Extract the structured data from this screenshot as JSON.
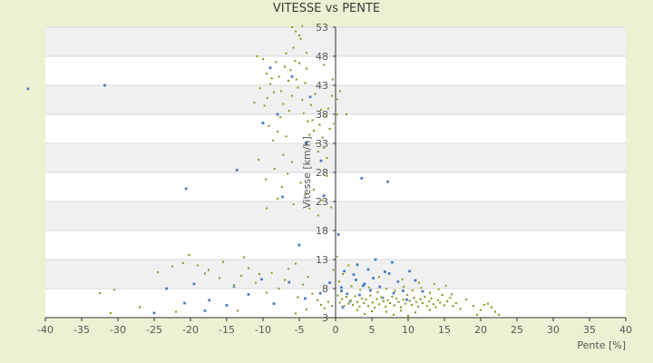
{
  "chart_data": {
    "type": "scatter",
    "title": "VITESSE vs PENTE",
    "xlabel": "Pente [%]",
    "ylabel": "Vitesse [km/h]",
    "xlim": [
      -40,
      40
    ],
    "ylim": [
      3,
      53
    ],
    "xticks": [
      -40,
      -35,
      -30,
      -25,
      -20,
      -15,
      -10,
      -5,
      0,
      5,
      10,
      15,
      20,
      25,
      30,
      35,
      40
    ],
    "yticks": [
      3,
      8,
      13,
      18,
      23,
      28,
      33,
      38,
      43,
      48,
      53
    ],
    "grid": "horizontal alternating bands",
    "legend": "none",
    "colors": {
      "background": "#ebf1d2",
      "band_white": "#ffffff",
      "band_grey": "#f0f0f0",
      "series_a": "#3d7bbf",
      "series_b": "#8a9a22",
      "axis": "#333333"
    },
    "series": [
      {
        "color": "#3d7bbf",
        "points": [
          [
            -42.4,
            42.4
          ],
          [
            -31.8,
            43.0
          ],
          [
            -13.6,
            28.4
          ],
          [
            -20.6,
            25.2
          ],
          [
            -7.3,
            23.8
          ],
          [
            -1.6,
            24.0
          ],
          [
            3.6,
            27.0
          ],
          [
            7.2,
            26.4
          ],
          [
            0.4,
            17.3
          ],
          [
            -5.0,
            15.5
          ],
          [
            -23.3,
            8.0
          ],
          [
            -19.5,
            8.8
          ],
          [
            -14.0,
            8.4
          ],
          [
            -10.2,
            9.6
          ],
          [
            -6.4,
            9.1
          ],
          [
            -20.8,
            5.5
          ],
          [
            -17.4,
            6.0
          ],
          [
            -12.0,
            7.0
          ],
          [
            -8.5,
            5.4
          ],
          [
            -4.2,
            6.3
          ],
          [
            -2.1,
            7.2
          ],
          [
            -0.8,
            9.0
          ],
          [
            -25.0,
            3.8
          ],
          [
            -18.0,
            4.2
          ],
          [
            -15.0,
            5.1
          ],
          [
            1.2,
            11.0
          ],
          [
            3.0,
            12.1
          ],
          [
            5.5,
            13.0
          ],
          [
            7.8,
            12.5
          ],
          [
            10.2,
            11.0
          ],
          [
            0.8,
            8.2
          ],
          [
            1.6,
            7.1
          ],
          [
            2.8,
            9.5
          ],
          [
            4.0,
            8.8
          ],
          [
            5.2,
            9.8
          ],
          [
            6.1,
            8.3
          ],
          [
            7.4,
            10.6
          ],
          [
            8.6,
            9.2
          ],
          [
            9.3,
            7.6
          ],
          [
            11.0,
            9.4
          ],
          [
            2.0,
            5.8
          ],
          [
            3.3,
            6.9
          ],
          [
            4.8,
            7.7
          ],
          [
            6.5,
            6.4
          ],
          [
            8.0,
            7.2
          ],
          [
            9.8,
            6.1
          ],
          [
            12.0,
            7.5
          ],
          [
            1.0,
            4.8
          ],
          [
            2.5,
            10.4
          ],
          [
            4.5,
            11.3
          ],
          [
            6.8,
            10.9
          ],
          [
            -8.0,
            38.0
          ],
          [
            -4.0,
            33.0
          ],
          [
            -10.0,
            36.5
          ],
          [
            -2.0,
            30.0
          ],
          [
            -9.0,
            46.0
          ],
          [
            -6.0,
            44.5
          ],
          [
            -3.5,
            41.0
          ],
          [
            0.8,
            7.6
          ],
          [
            3.8,
            8.5
          ]
        ]
      },
      {
        "color": "#8a9a22",
        "points": [
          [
            -32.5,
            7.2
          ],
          [
            -30.5,
            7.8
          ],
          [
            -31.0,
            3.8
          ],
          [
            -27.0,
            4.8
          ],
          [
            -24.5,
            10.8
          ],
          [
            -22.5,
            11.8
          ],
          [
            -22.0,
            4.0
          ],
          [
            -21.0,
            12.4
          ],
          [
            -20.2,
            13.8
          ],
          [
            -19.0,
            12.0
          ],
          [
            -18.0,
            10.6
          ],
          [
            -17.5,
            11.2
          ],
          [
            -16.0,
            9.8
          ],
          [
            -15.5,
            12.6
          ],
          [
            -14.0,
            8.6
          ],
          [
            -13.5,
            4.2
          ],
          [
            -13.0,
            10.2
          ],
          [
            -12.6,
            13.4
          ],
          [
            -12.0,
            11.5
          ],
          [
            -11.0,
            9.0
          ],
          [
            -10.5,
            10.5
          ],
          [
            -9.5,
            7.3
          ],
          [
            -8.8,
            10.7
          ],
          [
            -7.8,
            8.0
          ],
          [
            -7.0,
            9.5
          ],
          [
            -6.5,
            11.4
          ],
          [
            -5.5,
            12.3
          ],
          [
            -5.2,
            6.5
          ],
          [
            -4.5,
            8.7
          ],
          [
            -3.8,
            10.0
          ],
          [
            -3.2,
            7.1
          ],
          [
            -2.5,
            6.0
          ],
          [
            -2.0,
            5.2
          ],
          [
            -1.5,
            4.6
          ],
          [
            -1.0,
            5.7
          ],
          [
            -0.5,
            5.0
          ],
          [
            -5.5,
            3.7
          ],
          [
            -4.0,
            4.4
          ],
          [
            -10.8,
            48.0
          ],
          [
            -10.0,
            47.5
          ],
          [
            -9.5,
            45.0
          ],
          [
            -9.0,
            43.2
          ],
          [
            -8.5,
            41.8
          ],
          [
            -8.2,
            47.0
          ],
          [
            -7.8,
            44.5
          ],
          [
            -7.5,
            42.0
          ],
          [
            -7.2,
            39.8
          ],
          [
            -7.0,
            46.2
          ],
          [
            -6.8,
            48.5
          ],
          [
            -6.5,
            43.8
          ],
          [
            -6.2,
            45.6
          ],
          [
            -6.0,
            41.2
          ],
          [
            -5.8,
            49.5
          ],
          [
            -5.6,
            47.2
          ],
          [
            -5.4,
            44.0
          ],
          [
            -5.2,
            42.6
          ],
          [
            -5.0,
            46.8
          ],
          [
            -4.8,
            51.0
          ],
          [
            -4.6,
            40.5
          ],
          [
            -4.4,
            38.2
          ],
          [
            -4.2,
            43.4
          ],
          [
            -4.0,
            45.9
          ],
          [
            -3.8,
            36.8
          ],
          [
            -3.6,
            34.5
          ],
          [
            -3.4,
            39.6
          ],
          [
            -3.2,
            37.0
          ],
          [
            -3.0,
            35.2
          ],
          [
            -2.8,
            41.5
          ],
          [
            -2.6,
            33.0
          ],
          [
            -2.4,
            31.6
          ],
          [
            -2.2,
            36.2
          ],
          [
            -2.0,
            38.8
          ],
          [
            -1.8,
            34.0
          ],
          [
            -1.6,
            32.2
          ],
          [
            -1.4,
            37.6
          ],
          [
            -1.2,
            30.5
          ],
          [
            -1.0,
            39.0
          ],
          [
            -0.8,
            35.5
          ],
          [
            -0.5,
            41.2
          ],
          [
            -0.2,
            36.4
          ],
          [
            0.2,
            38.0
          ],
          [
            -9.8,
            39.5
          ],
          [
            -9.2,
            36.0
          ],
          [
            -8.6,
            33.5
          ],
          [
            -8.0,
            35.0
          ],
          [
            -7.6,
            37.5
          ],
          [
            -7.2,
            31.0
          ],
          [
            -6.8,
            34.2
          ],
          [
            -6.4,
            38.6
          ],
          [
            -6.0,
            29.8
          ],
          [
            -10.4,
            42.5
          ],
          [
            -9.4,
            40.8
          ],
          [
            -8.8,
            44.2
          ],
          [
            -11.2,
            40.0
          ],
          [
            -10.6,
            30.2
          ],
          [
            -9.6,
            26.8
          ],
          [
            -8.4,
            28.6
          ],
          [
            -7.4,
            25.5
          ],
          [
            -6.6,
            27.8
          ],
          [
            -5.8,
            22.5
          ],
          [
            -4.8,
            26.2
          ],
          [
            -4.2,
            24.2
          ],
          [
            -3.6,
            21.8
          ],
          [
            -3.0,
            25.0
          ],
          [
            -2.4,
            20.6
          ],
          [
            -1.8,
            23.2
          ],
          [
            -1.2,
            27.4
          ],
          [
            -0.6,
            22.0
          ],
          [
            -9.5,
            21.8
          ],
          [
            -8.0,
            23.5
          ],
          [
            -6.0,
            53.0
          ],
          [
            -5.5,
            52.3
          ],
          [
            -5.0,
            51.6
          ],
          [
            -4.6,
            53.2
          ],
          [
            -4.0,
            48.6
          ],
          [
            1.5,
            38.0
          ],
          [
            0.6,
            42.0
          ],
          [
            0.2,
            40.6
          ],
          [
            -0.4,
            44.0
          ],
          [
            -1.6,
            46.5
          ],
          [
            0.3,
            6.8
          ],
          [
            0.6,
            5.6
          ],
          [
            0.9,
            6.2
          ],
          [
            1.2,
            5.0
          ],
          [
            1.5,
            6.6
          ],
          [
            1.8,
            5.4
          ],
          [
            2.1,
            6.0
          ],
          [
            2.4,
            5.2
          ],
          [
            2.7,
            6.7
          ],
          [
            3.0,
            5.7
          ],
          [
            3.3,
            4.9
          ],
          [
            3.6,
            6.3
          ],
          [
            3.9,
            5.5
          ],
          [
            4.2,
            6.1
          ],
          [
            4.5,
            5.0
          ],
          [
            4.8,
            6.8
          ],
          [
            5.1,
            5.6
          ],
          [
            5.4,
            4.7
          ],
          [
            5.7,
            6.2
          ],
          [
            6.0,
            5.3
          ],
          [
            6.3,
            6.5
          ],
          [
            6.6,
            5.8
          ],
          [
            6.9,
            4.9
          ],
          [
            7.2,
            6.0
          ],
          [
            7.5,
            5.5
          ],
          [
            7.8,
            6.6
          ],
          [
            8.1,
            5.1
          ],
          [
            8.4,
            6.3
          ],
          [
            8.7,
            5.7
          ],
          [
            9.0,
            4.8
          ],
          [
            9.3,
            6.1
          ],
          [
            9.6,
            5.4
          ],
          [
            9.9,
            6.9
          ],
          [
            10.2,
            5.9
          ],
          [
            10.5,
            5.2
          ],
          [
            10.8,
            6.4
          ],
          [
            11.1,
            5.7
          ],
          [
            11.4,
            4.9
          ],
          [
            11.7,
            6.2
          ],
          [
            12.0,
            5.5
          ],
          [
            12.3,
            6.6
          ],
          [
            12.6,
            5.0
          ],
          [
            12.9,
            5.8
          ],
          [
            13.2,
            6.3
          ],
          [
            13.5,
            5.3
          ],
          [
            13.8,
            4.8
          ],
          [
            14.1,
            6.0
          ],
          [
            14.4,
            5.6
          ],
          [
            14.7,
            6.9
          ],
          [
            15.0,
            5.1
          ],
          [
            15.4,
            5.8
          ],
          [
            15.8,
            6.4
          ],
          [
            16.2,
            5.0
          ],
          [
            16.6,
            5.5
          ],
          [
            2.2,
            8.4
          ],
          [
            3.4,
            7.8
          ],
          [
            4.6,
            8.2
          ],
          [
            5.8,
            7.4
          ],
          [
            7.0,
            8.0
          ],
          [
            8.2,
            7.6
          ],
          [
            9.4,
            8.3
          ],
          [
            10.6,
            7.7
          ],
          [
            11.8,
            8.1
          ],
          [
            13.0,
            7.3
          ],
          [
            14.2,
            7.9
          ],
          [
            15.2,
            8.5
          ],
          [
            3.0,
            4.3
          ],
          [
            5.0,
            4.1
          ],
          [
            7.0,
            4.0
          ],
          [
            9.0,
            4.2
          ],
          [
            11.0,
            3.9
          ],
          [
            13.0,
            4.3
          ],
          [
            4.0,
            3.6
          ],
          [
            8.0,
            3.5
          ],
          [
            10.0,
            3.3
          ],
          [
            19.0,
            5.0
          ],
          [
            19.5,
            3.5
          ],
          [
            20.0,
            4.3
          ],
          [
            21.0,
            5.4
          ],
          [
            21.5,
            4.8
          ],
          [
            22.0,
            4.0
          ],
          [
            22.5,
            3.5
          ],
          [
            20.5,
            5.2
          ],
          [
            18.0,
            6.1
          ],
          [
            17.2,
            4.5
          ],
          [
            0.5,
            9.2
          ],
          [
            1.0,
            10.5
          ],
          [
            1.8,
            12.0
          ],
          [
            0.2,
            13.5
          ],
          [
            -0.3,
            11.2
          ],
          [
            6.0,
            10.0
          ],
          [
            9.2,
            9.6
          ],
          [
            11.5,
            9.0
          ],
          [
            13.6,
            8.8
          ],
          [
            16.0,
            7.0
          ]
        ]
      }
    ]
  }
}
